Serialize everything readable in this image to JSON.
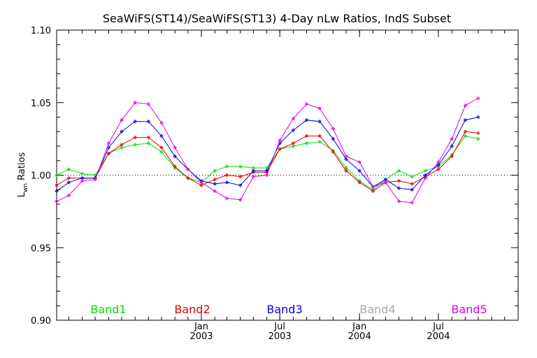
{
  "chart_data": {
    "type": "line",
    "title": "SeaWiFS(ST14)/SeaWiFS(ST13) 4-Day nLw Ratios, IndS Subset",
    "ylabel_main": "L",
    "ylabel_sub": "wn",
    "ylabel_rest": " Ratios",
    "xlabel": "",
    "ylim": [
      0.9,
      1.1
    ],
    "y_ticks": [
      "0.90",
      "0.95",
      "1.00",
      "1.05",
      "1.10"
    ],
    "reference_line": 1.0,
    "x_ticks": [
      {
        "month": "Jan",
        "year": "2003"
      },
      {
        "month": "Jul",
        "year": "2003"
      },
      {
        "month": "Jan",
        "year": "2004"
      },
      {
        "month": "Jul",
        "year": "2004"
      }
    ],
    "x_dates": [
      "2002-02",
      "2002-03",
      "2002-04",
      "2002-05",
      "2002-06",
      "2002-07",
      "2002-08",
      "2002-09",
      "2002-10",
      "2002-11",
      "2002-12",
      "2003-01",
      "2003-02",
      "2003-03",
      "2003-04",
      "2003-05",
      "2003-06",
      "2003-07",
      "2003-08",
      "2003-09",
      "2003-10",
      "2003-11",
      "2003-12",
      "2004-01",
      "2004-02",
      "2004-03",
      "2004-04",
      "2004-05",
      "2004-06",
      "2004-07",
      "2004-08",
      "2004-09",
      "2004-10",
      "2004-11",
      "2004-12",
      "2005-01"
    ],
    "series": [
      {
        "name": "Band1",
        "color": "#00e000",
        "values": [
          1.0,
          1.004,
          1.001,
          1.0,
          1.015,
          1.019,
          1.021,
          1.022,
          1.016,
          1.005,
          0.998,
          0.995,
          1.003,
          1.006,
          1.006,
          1.005,
          1.005,
          1.018,
          1.02,
          1.022,
          1.023,
          1.017,
          1.005,
          0.996,
          0.99,
          0.997,
          1.003,
          0.999,
          1.003,
          1.006,
          1.014,
          1.027,
          1.025
        ]
      },
      {
        "name": "Band2",
        "color": "#e00000",
        "values": [
          0.993,
          0.998,
          0.998,
          0.998,
          1.015,
          1.021,
          1.026,
          1.026,
          1.019,
          1.006,
          0.998,
          0.993,
          0.997,
          1.0,
          0.999,
          1.002,
          1.002,
          1.018,
          1.022,
          1.027,
          1.027,
          1.016,
          1.003,
          0.995,
          0.989,
          0.995,
          0.996,
          0.994,
          0.999,
          1.004,
          1.013,
          1.03,
          1.029
        ]
      },
      {
        "name": "Band3",
        "color": "#0000e0",
        "values": [
          0.989,
          0.995,
          0.998,
          0.998,
          1.019,
          1.03,
          1.037,
          1.037,
          1.027,
          1.013,
          1.004,
          0.996,
          0.994,
          0.995,
          0.993,
          1.003,
          1.003,
          1.022,
          1.031,
          1.038,
          1.037,
          1.025,
          1.011,
          1.003,
          0.992,
          0.997,
          0.991,
          0.99,
          1.0,
          1.007,
          1.02,
          1.038,
          1.04
        ]
      },
      {
        "name": "Band4",
        "color": "#aaaaaa",
        "values": []
      },
      {
        "name": "Band5",
        "color": "#e000e0",
        "values": [
          0.982,
          0.986,
          0.996,
          0.997,
          1.022,
          1.038,
          1.05,
          1.049,
          1.036,
          1.019,
          1.004,
          0.995,
          0.989,
          0.984,
          0.983,
          0.999,
          1.0,
          1.024,
          1.039,
          1.049,
          1.046,
          1.032,
          1.013,
          1.009,
          0.992,
          0.995,
          0.982,
          0.981,
          0.998,
          1.009,
          1.025,
          1.048,
          1.053
        ]
      }
    ],
    "grid": false,
    "legend_placement": "bottom"
  }
}
